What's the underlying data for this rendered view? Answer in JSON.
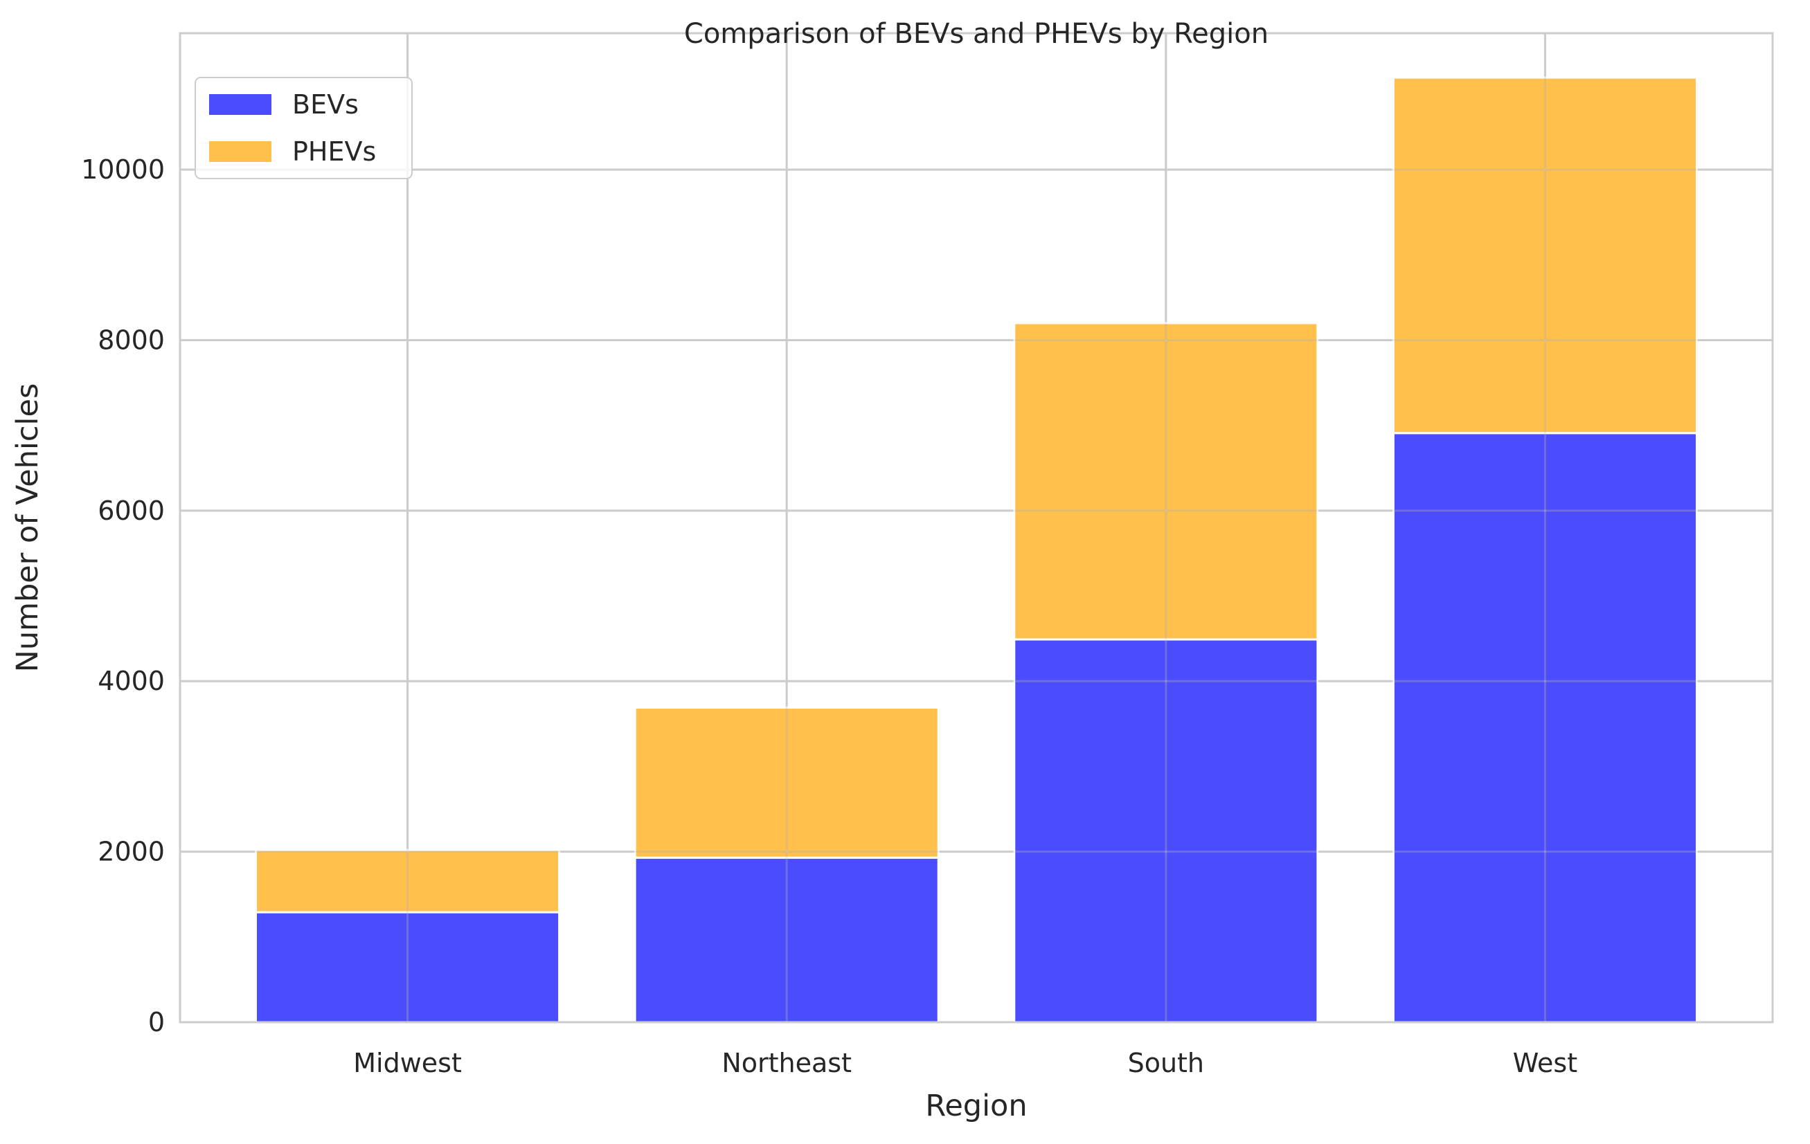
{
  "chart_data": {
    "type": "bar",
    "stacked": true,
    "title": "Comparison of BEVs and PHEVs by Region",
    "xlabel": "Region",
    "ylabel": "Number of Vehicles",
    "categories": [
      "Midwest",
      "Northeast",
      "South",
      "West"
    ],
    "series": [
      {
        "name": "BEVs",
        "color": "#0000ff",
        "values": [
          1290,
          1930,
          4490,
          6910
        ]
      },
      {
        "name": "PHEVs",
        "color": "#ffa500",
        "values": [
          730,
          1760,
          3710,
          4170
        ]
      }
    ],
    "ylim": [
      0,
      11600
    ],
    "yticks": [
      0,
      2000,
      4000,
      6000,
      8000,
      10000
    ],
    "grid": true,
    "legend_position": "top-left"
  }
}
